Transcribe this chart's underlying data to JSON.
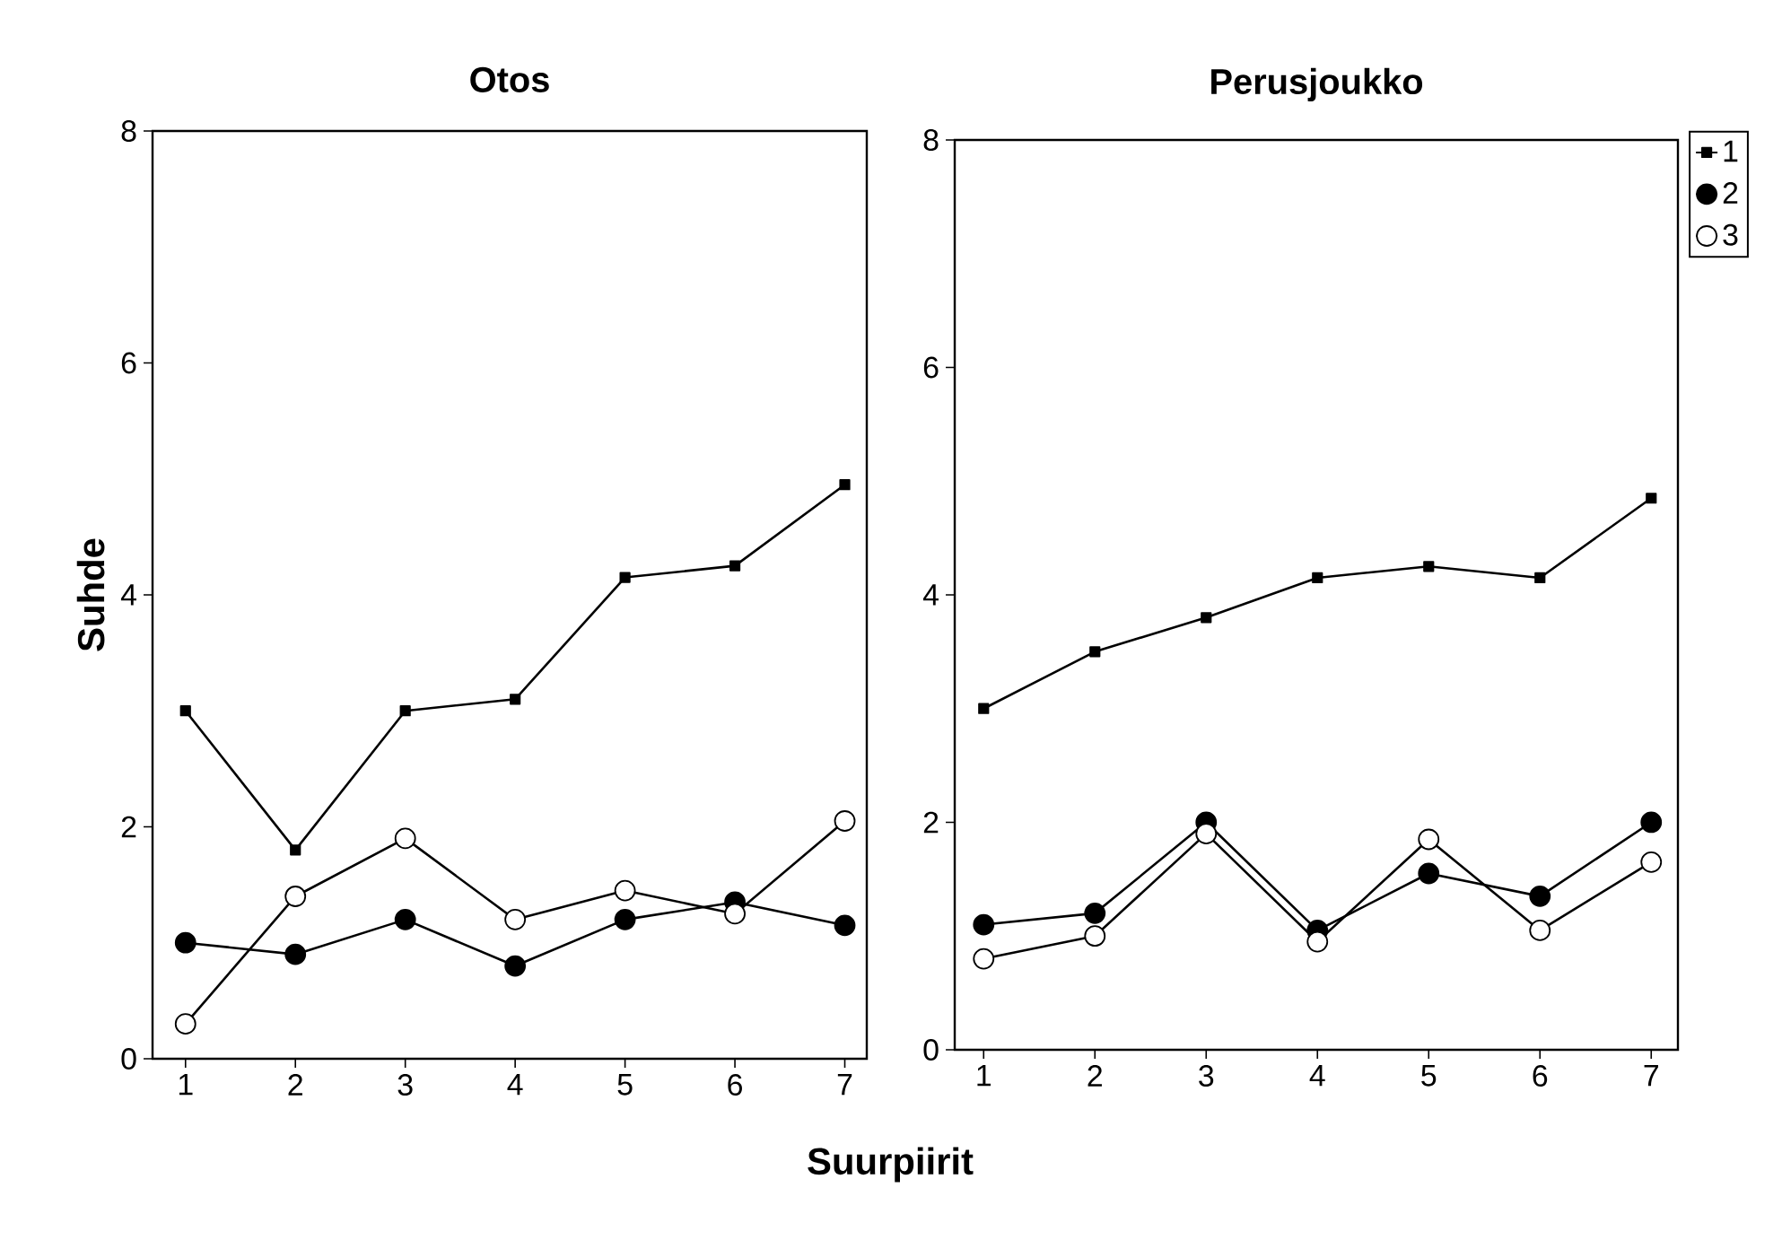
{
  "chart_data": [
    {
      "type": "line",
      "title": "Otos",
      "ylabel": "Suhde",
      "xlabel": "Suurpiirit",
      "categories": [
        "1",
        "2",
        "3",
        "4",
        "5",
        "6",
        "7"
      ],
      "ylim": [
        0,
        8
      ],
      "yticks": [
        0,
        2,
        4,
        6,
        8
      ],
      "grid": false,
      "legend": false,
      "series": [
        {
          "color": "#000000",
          "marker": "square",
          "values": [
            3.0,
            1.8,
            3.0,
            3.1,
            4.15,
            4.25,
            4.95
          ]
        },
        {
          "color": "#000000",
          "marker": "circle",
          "values": [
            1.0,
            0.9,
            1.2,
            0.8,
            1.2,
            1.35,
            1.15
          ]
        },
        {
          "color": "#000000",
          "marker": "circle",
          "values": [
            0.3,
            1.4,
            1.9,
            1.2,
            1.45,
            1.25,
            2.05
          ]
        }
      ]
    },
    {
      "type": "line",
      "title": "Perusjoukko",
      "categories": [
        "1",
        "2",
        "3",
        "4",
        "5",
        "6",
        "7"
      ],
      "ylim": [
        0,
        8
      ],
      "yticks": [
        0,
        2,
        4,
        6,
        8
      ],
      "grid": false,
      "legend": "top right",
      "series": [
        {
          "name": "1",
          "color": "#000000",
          "marker": "square",
          "values": [
            3.0,
            3.5,
            3.8,
            4.15,
            4.25,
            4.15,
            4.85
          ]
        },
        {
          "name": "2",
          "color": "#000000",
          "marker": "circle",
          "values": [
            1.1,
            1.2,
            2.0,
            1.05,
            1.55,
            1.35,
            2.0
          ]
        },
        {
          "name": "3",
          "color": "#000000",
          "marker": "circle",
          "values": [
            0.8,
            1.0,
            1.9,
            0.95,
            1.85,
            1.05,
            1.65
          ]
        }
      ]
    }
  ]
}
